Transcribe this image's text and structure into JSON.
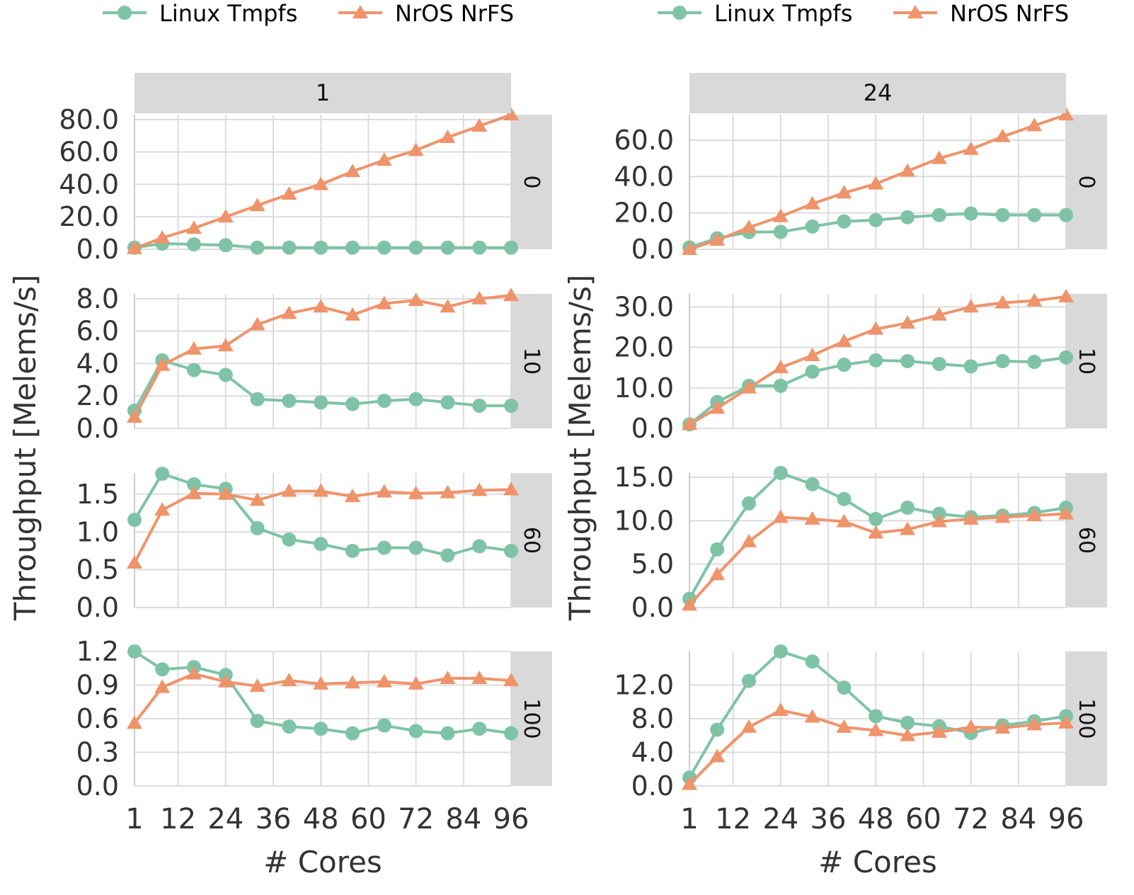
{
  "colors": {
    "linux": "#7fc3a6",
    "nros": "#ef936b",
    "strip": "#d9d9d9",
    "grid": "#dcdcdc"
  },
  "chart_data": {
    "type": "line",
    "ylabel": "Throughput [Melems/s]",
    "xlabel": "# Cores",
    "legend": [
      "Linux Tmpfs",
      "NrOS NrFS"
    ],
    "legend_placement": "top",
    "x": [
      1,
      8,
      16,
      24,
      32,
      40,
      48,
      56,
      64,
      72,
      80,
      88,
      96
    ],
    "xticks": [
      1,
      12,
      24,
      36,
      48,
      60,
      72,
      84,
      96
    ],
    "xlim": [
      1,
      96
    ],
    "columns": [
      "1",
      "24"
    ],
    "rows": [
      "0",
      "10",
      "60",
      "100"
    ],
    "panels": [
      {
        "col": "1",
        "row": "0",
        "ylim": [
          0,
          83
        ],
        "yticks": [
          0,
          20,
          40,
          60,
          80
        ],
        "ytick_labels": [
          "0.0",
          "20.0",
          "40.0",
          "60.0",
          "80.0"
        ],
        "series": [
          {
            "name": "Linux Tmpfs",
            "values": [
              1,
              3.5,
              3,
              2.5,
              1,
              1,
              1,
              1,
              1,
              1,
              1,
              1,
              1
            ]
          },
          {
            "name": "NrOS NrFS",
            "values": [
              0.5,
              7,
              13,
              20,
              27,
              34,
              40,
              48,
              55,
              61,
              69,
              76,
              83
            ]
          }
        ]
      },
      {
        "col": "24",
        "row": "0",
        "ylim": [
          0,
          74
        ],
        "yticks": [
          0,
          20,
          40,
          60
        ],
        "ytick_labels": [
          "0.0",
          "20.0",
          "40.0",
          "60.0"
        ],
        "series": [
          {
            "name": "Linux Tmpfs",
            "values": [
              1,
              6,
              9.5,
              9.5,
              12.5,
              15.3,
              16,
              17.6,
              18.8,
              19.6,
              18.8,
              18.8,
              18.8
            ]
          },
          {
            "name": "NrOS NrFS",
            "values": [
              0,
              5,
              12,
              18,
              25,
              31,
              36,
              43,
              50,
              55,
              62,
              68,
              74
            ]
          }
        ]
      },
      {
        "col": "1",
        "row": "10",
        "ylim": [
          0,
          8.3
        ],
        "yticks": [
          0,
          2,
          4,
          6,
          8
        ],
        "ytick_labels": [
          "0.0",
          "2.0",
          "4.0",
          "6.0",
          "8.0"
        ],
        "series": [
          {
            "name": "Linux Tmpfs",
            "values": [
              1.1,
              4.2,
              3.6,
              3.3,
              1.8,
              1.7,
              1.6,
              1.5,
              1.7,
              1.8,
              1.6,
              1.4,
              1.4
            ]
          },
          {
            "name": "NrOS NrFS",
            "values": [
              0.7,
              3.9,
              4.9,
              5.1,
              6.4,
              7.1,
              7.5,
              7.0,
              7.7,
              7.9,
              7.5,
              8.0,
              8.2
            ]
          }
        ]
      },
      {
        "col": "24",
        "row": "10",
        "ylim": [
          0,
          33.2
        ],
        "yticks": [
          0,
          10,
          20,
          30
        ],
        "ytick_labels": [
          "0.0",
          "10.0",
          "20.0",
          "30.0"
        ],
        "series": [
          {
            "name": "Linux Tmpfs",
            "values": [
              1,
              6.5,
              10.5,
              10.5,
              14,
              15.7,
              16.8,
              16.6,
              15.9,
              15.3,
              16.6,
              16.4,
              17.5
            ]
          },
          {
            "name": "NrOS NrFS",
            "values": [
              1,
              5,
              10,
              15,
              18,
              21.5,
              24.5,
              26,
              28,
              30,
              31,
              31.5,
              32.5
            ]
          }
        ]
      },
      {
        "col": "1",
        "row": "60",
        "ylim": [
          0,
          1.78
        ],
        "yticks": [
          0,
          0.5,
          1.0,
          1.5
        ],
        "ytick_labels": [
          "0.0",
          "0.5",
          "1.0",
          "1.5"
        ],
        "series": [
          {
            "name": "Linux Tmpfs",
            "values": [
              1.16,
              1.77,
              1.63,
              1.57,
              1.05,
              0.9,
              0.84,
              0.75,
              0.79,
              0.79,
              0.69,
              0.81,
              0.75
            ]
          },
          {
            "name": "NrOS NrFS",
            "values": [
              0.59,
              1.29,
              1.51,
              1.5,
              1.42,
              1.54,
              1.54,
              1.47,
              1.53,
              1.51,
              1.52,
              1.55,
              1.56
            ]
          }
        ]
      },
      {
        "col": "24",
        "row": "60",
        "ylim": [
          0,
          15.5
        ],
        "yticks": [
          0,
          5,
          10,
          15
        ],
        "ytick_labels": [
          "0.0",
          "5.0",
          "10.0",
          "15.0"
        ],
        "series": [
          {
            "name": "Linux Tmpfs",
            "values": [
              1,
              6.7,
              12,
              15.5,
              14.2,
              12.5,
              10.2,
              11.5,
              10.8,
              10.4,
              10.6,
              10.9,
              11.5
            ]
          },
          {
            "name": "NrOS NrFS",
            "values": [
              0.3,
              3.8,
              7.6,
              10.4,
              10.2,
              9.9,
              8.6,
              9,
              9.9,
              10.2,
              10.4,
              10.6,
              10.8
            ]
          }
        ]
      },
      {
        "col": "1",
        "row": "100",
        "ylim": [
          0,
          1.2
        ],
        "yticks": [
          0,
          0.3,
          0.6,
          0.9,
          1.2
        ],
        "ytick_labels": [
          "0.0",
          "0.3",
          "0.6",
          "0.9",
          "1.2"
        ],
        "series": [
          {
            "name": "Linux Tmpfs",
            "values": [
              1.2,
              1.04,
              1.06,
              0.99,
              0.58,
              0.53,
              0.51,
              0.47,
              0.54,
              0.49,
              0.47,
              0.51,
              0.47
            ]
          },
          {
            "name": "NrOS NrFS",
            "values": [
              0.56,
              0.88,
              1.0,
              0.93,
              0.89,
              0.94,
              0.91,
              0.92,
              0.93,
              0.91,
              0.96,
              0.96,
              0.94
            ]
          }
        ]
      },
      {
        "col": "24",
        "row": "100",
        "ylim": [
          0,
          16
        ],
        "yticks": [
          0,
          4,
          8,
          12
        ],
        "ytick_labels": [
          "0.0",
          "4.0",
          "8.0",
          "12.0"
        ],
        "series": [
          {
            "name": "Linux Tmpfs",
            "values": [
              1,
              6.7,
              12.5,
              16,
              14.8,
              11.7,
              8.3,
              7.5,
              7.1,
              6.3,
              7.2,
              7.7,
              8.3
            ]
          },
          {
            "name": "NrOS NrFS",
            "values": [
              0.2,
              3.5,
              7,
              9,
              8.2,
              7,
              6.6,
              6,
              6.4,
              7,
              6.9,
              7.3,
              7.5
            ]
          }
        ]
      }
    ]
  }
}
